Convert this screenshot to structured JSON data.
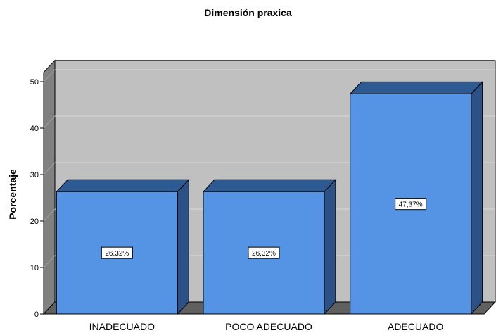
{
  "chart_data": {
    "type": "bar",
    "title": "Dimensión praxica",
    "xlabel": "",
    "ylabel": "Porcentaje",
    "categories": [
      "INADECUADO",
      "POCO ADECUADO",
      "ADECUADO"
    ],
    "values": [
      26.32,
      26.32,
      47.37
    ],
    "data_labels": [
      "26,32%",
      "26,32%",
      "47,37%"
    ],
    "ylim": [
      0,
      52
    ],
    "yticks": [
      0,
      10,
      20,
      30,
      40,
      50
    ],
    "grid": true,
    "legend": "none",
    "colors": {
      "bar_front": "#5594e4",
      "bar_top": "#2e5a94",
      "bar_side": "#2b5186",
      "plot_back": "#c0c0c0",
      "wall_side": "#808080",
      "floor": "#606060",
      "grid": "#d8d8d8"
    }
  }
}
